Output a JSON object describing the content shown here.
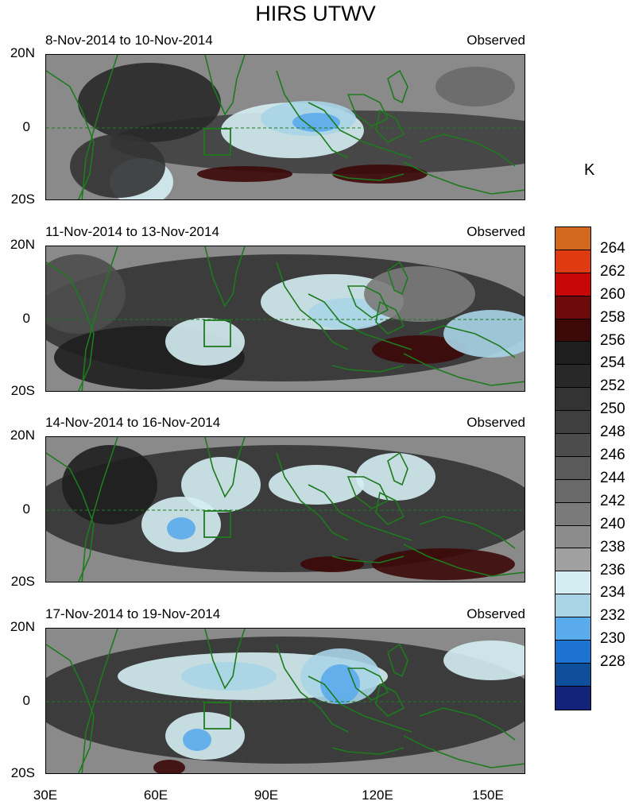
{
  "title": "HIRS UTWV",
  "unit": "K",
  "panels": [
    {
      "left": "8-Nov-2014 to 10-Nov-2014",
      "right": "Observed"
    },
    {
      "left": "11-Nov-2014 to 13-Nov-2014",
      "right": "Observed"
    },
    {
      "left": "14-Nov-2014 to 16-Nov-2014",
      "right": "Observed"
    },
    {
      "left": "17-Nov-2014 to 19-Nov-2014",
      "right": "Observed"
    }
  ],
  "lat_labels": [
    "20N",
    "0",
    "20S"
  ],
  "lon_labels": [
    "30E",
    "60E",
    "90E",
    "120E",
    "150E"
  ],
  "colorbar": {
    "labels": [
      "264",
      "262",
      "260",
      "258",
      "256",
      "254",
      "252",
      "250",
      "248",
      "246",
      "244",
      "242",
      "240",
      "238",
      "236",
      "234",
      "232",
      "230",
      "228"
    ],
    "colors": [
      "#d2691e",
      "#e03a12",
      "#c80808",
      "#6e0a0a",
      "#3c0808",
      "#1e1e1e",
      "#282828",
      "#333333",
      "#3f3f3f",
      "#4c4c4c",
      "#5a5a5a",
      "#696969",
      "#7a7a7a",
      "#8c8c8c",
      "#a0a0a0",
      "#d4edf2",
      "#a8d4e6",
      "#5aabeb",
      "#1c73d2",
      "#0f4e9a",
      "#14237a"
    ]
  }
}
